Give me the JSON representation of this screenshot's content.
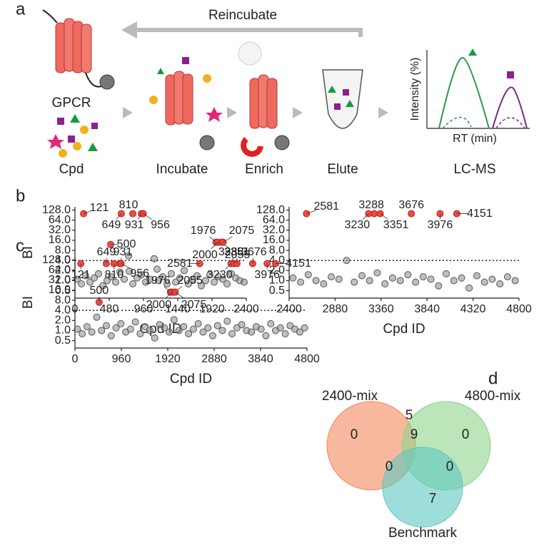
{
  "diagram": {
    "panel": "a",
    "arrow_label": "Reincubate",
    "receptor": "GPCR",
    "compounds": "Cpd",
    "steps": [
      "Incubate",
      "Enrich",
      "Elute",
      "LC-MS"
    ],
    "ms_y_label": "Intensity (%)",
    "ms_x_label": "RT (min)"
  },
  "panels": [
    "b",
    "c",
    "d"
  ],
  "chart_data": [
    {
      "type": "scatter",
      "x_label": "Cpd ID",
      "y_label": "BI",
      "log_y": true,
      "threshold": 4,
      "xlim": [
        0,
        2400
      ],
      "xticks": [
        0,
        480,
        960,
        1440,
        1920,
        2400
      ],
      "ylim": [
        0.3,
        160
      ],
      "yticks": [
        {
          "value": 0.5,
          "label": "0.5"
        },
        {
          "value": 1,
          "label": "1.0"
        },
        {
          "value": 2,
          "label": "2.0"
        },
        {
          "value": 4,
          "label": "4.0"
        },
        {
          "value": 8,
          "label": "8.0"
        },
        {
          "value": 16,
          "label": "16.0"
        },
        {
          "value": 32,
          "label": "32.0"
        },
        {
          "value": 64,
          "label": "64.0"
        },
        {
          "value": 128,
          "label": "128.0"
        }
      ],
      "series": [
        {
          "color": "#8a8a8a",
          "x": [
            30,
            90,
            150,
            210,
            270,
            330,
            390,
            450,
            510,
            570,
            630,
            690,
            750,
            810,
            870,
            930,
            990,
            1050,
            1110,
            1170,
            1230,
            1290,
            1350,
            1410,
            1470,
            1530,
            1590,
            1650,
            1710,
            1770,
            1830,
            1890,
            1950,
            2010,
            2070,
            2130,
            2190,
            2250,
            2310,
            2370,
            760,
            1150
          ],
          "values": [
            1.1,
            0.8,
            1.4,
            0.9,
            1.2,
            1.6,
            0.7,
            1.0,
            1.3,
            0.9,
            1.8,
            1.1,
            5.5,
            0.8,
            1.2,
            1.5,
            0.9,
            1.1,
            4.5,
            1.0,
            1.3,
            0.8,
            1.6,
            0.9,
            1.2,
            2.0,
            0.8,
            1.1,
            1.4,
            0.7,
            1.0,
            1.5,
            0.9,
            1.3,
            1.1,
            0.8,
            1.6,
            1.2,
            1.0,
            0.9,
            1.9,
            2.2
          ]
        },
        {
          "color": "#e8453c",
          "labelled": true,
          "x": [
            121,
            500,
            649,
            810,
            931,
            956,
            1976,
            2000,
            2055,
            2075
          ],
          "values": [
            100,
            12,
            100,
            100,
            100,
            100,
            14,
            14,
            14,
            14
          ]
        }
      ]
    },
    {
      "type": "scatter",
      "x_label": "Cpd ID",
      "y_label": "BI",
      "log_y": true,
      "threshold": 4,
      "xlim": [
        2400,
        4800
      ],
      "xticks": [
        2400,
        2880,
        3360,
        3840,
        4320,
        4800
      ],
      "ylim": [
        0.3,
        160
      ],
      "yticks": [
        {
          "value": 0.5,
          "label": "0.5"
        },
        {
          "value": 1,
          "label": "1.0"
        },
        {
          "value": 2,
          "label": "2.0"
        },
        {
          "value": 4,
          "label": "4.0"
        },
        {
          "value": 8,
          "label": "8.0"
        },
        {
          "value": 16,
          "label": "16.0"
        },
        {
          "value": 32,
          "label": "32.0"
        },
        {
          "value": 64,
          "label": "64.0"
        },
        {
          "value": 128,
          "label": "128.0"
        }
      ],
      "series": [
        {
          "color": "#8a8a8a",
          "x": [
            2440,
            2520,
            2600,
            2680,
            2760,
            2840,
            2920,
            3000,
            3080,
            3160,
            3240,
            3320,
            3400,
            3480,
            3560,
            3640,
            3720,
            3800,
            3880,
            3960,
            4040,
            4120,
            4200,
            4280,
            4360,
            4440,
            4520,
            4600,
            4680,
            4760
          ],
          "values": [
            1.2,
            0.9,
            1.5,
            1.0,
            0.8,
            1.3,
            1.1,
            4.0,
            0.9,
            1.4,
            1.0,
            1.7,
            0.8,
            1.2,
            1.0,
            1.5,
            0.9,
            1.3,
            1.1,
            0.7,
            1.6,
            1.0,
            1.2,
            0.6,
            1.4,
            0.9,
            1.1,
            0.8,
            1.3,
            1.0
          ]
        },
        {
          "color": "#e8453c",
          "labelled": true,
          "x": [
            2581,
            3230,
            3288,
            3351,
            3676,
            3976,
            4151
          ],
          "values": [
            100,
            100,
            100,
            100,
            100,
            100,
            100
          ]
        }
      ]
    },
    {
      "type": "scatter",
      "x_label": "Cpd ID",
      "y_label": "BI",
      "log_y": true,
      "threshold": 4,
      "xlim": [
        0,
        4800
      ],
      "xticks": [
        0,
        960,
        1920,
        2880,
        3840,
        4800
      ],
      "ylim": [
        0.3,
        160
      ],
      "yticks": [
        {
          "value": 0.5,
          "label": "0.5"
        },
        {
          "value": 1,
          "label": "1.0"
        },
        {
          "value": 2,
          "label": "2.0"
        },
        {
          "value": 4,
          "label": "4.0"
        },
        {
          "value": 8,
          "label": "8.0"
        },
        {
          "value": 16,
          "label": "16.0"
        },
        {
          "value": 32,
          "label": "32.0"
        },
        {
          "value": 64,
          "label": "64.0"
        },
        {
          "value": 128,
          "label": "128.0"
        }
      ],
      "series": [
        {
          "color": "#8a8a8a",
          "x": [
            50,
            150,
            250,
            350,
            450,
            550,
            650,
            750,
            850,
            950,
            1050,
            1150,
            1250,
            1350,
            1450,
            1550,
            1650,
            1750,
            1850,
            1950,
            2050,
            2150,
            2250,
            2350,
            2450,
            2550,
            2650,
            2750,
            2850,
            2950,
            3050,
            3150,
            3250,
            3350,
            3450,
            3550,
            3650,
            3750,
            3850,
            3950,
            4050,
            4150,
            4250,
            4350,
            4450,
            4550,
            4650,
            4750
          ],
          "values": [
            1.1,
            0.8,
            1.3,
            0.9,
            2.5,
            1.0,
            1.4,
            0.7,
            1.2,
            1.6,
            0.9,
            1.1,
            1.8,
            0.8,
            1.3,
            1.0,
            0.6,
            1.5,
            1.2,
            0.9,
            2.1,
            1.0,
            1.3,
            0.8,
            1.1,
            1.6,
            0.9,
            1.2,
            0.7,
            1.4,
            1.0,
            1.9,
            0.8,
            1.2,
            1.5,
            1.0,
            0.9,
            1.3,
            1.1,
            0.7,
            1.6,
            1.0,
            1.2,
            0.8,
            1.4,
            1.1,
            0.9,
            1.2
          ]
        },
        {
          "color": "#e8453c",
          "labelled": true,
          "x": [
            121,
            500,
            649,
            810,
            931,
            956,
            1976,
            2000,
            2055,
            2075,
            2581,
            3230,
            3288,
            3351,
            3676,
            3976,
            4151
          ],
          "values": [
            100,
            7,
            100,
            100,
            100,
            100,
            14,
            14,
            14,
            14,
            100,
            100,
            100,
            100,
            100,
            100,
            100
          ]
        }
      ]
    },
    {
      "type": "venn",
      "sets": [
        "2400-mix",
        "4800-mix",
        "Benchmark"
      ],
      "colors": [
        "#f4895c",
        "#8fd48c",
        "#5ec8c2"
      ],
      "values": [
        0,
        0,
        7,
        5,
        0,
        0,
        9
      ]
    }
  ]
}
